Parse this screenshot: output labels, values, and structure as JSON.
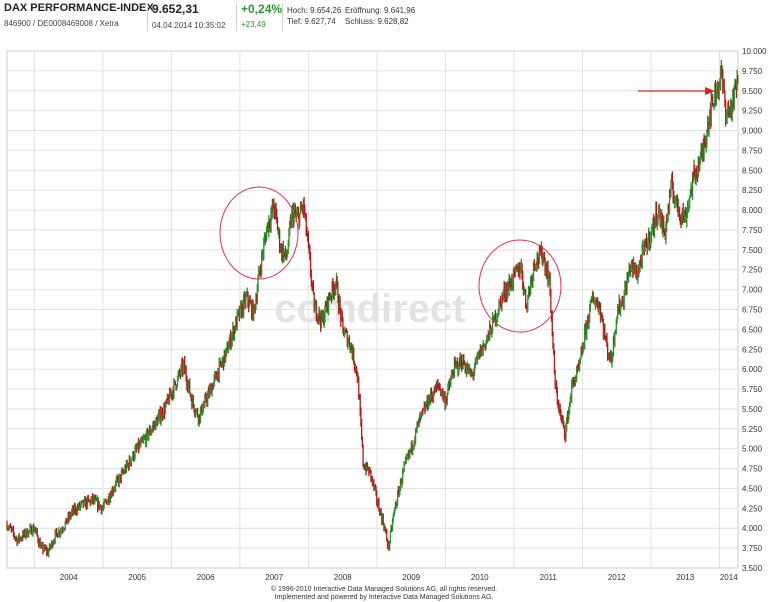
{
  "header": {
    "name": "DAX PERFORMANCE-INDEX",
    "id_line": "846900 / DE0008469008 / Xetra",
    "price": "9.652,31",
    "datetime": "04.04.2014 10:35:02",
    "change_pct": "+0,24%",
    "change_abs": "+23,49",
    "high_label": "Hoch:",
    "high_value": "9.654,26",
    "open_label": "Eröffnung:",
    "open_value": "9.641,96",
    "low_label": "Tief:",
    "low_value": "9.627,74",
    "close_label": "Schluss:",
    "close_value": "9.628,82"
  },
  "watermark": "comdirect",
  "footer": {
    "line1": "© 1996-2010 Interactive Data Managed Solutions AG, all rights reserved.",
    "line2": "Implemented and powered by Interactive Data Managed Solutions AG."
  },
  "colors": {
    "up": "#2e8b2e",
    "down": "#b01818",
    "grid": "#e2e2e2",
    "annotation": "#e0334a",
    "arrow": "#e02020"
  },
  "chart_data": {
    "type": "line",
    "title": "",
    "xlabel": "",
    "ylabel": "",
    "x_tick_labels": [
      "2004",
      "2005",
      "2006",
      "2007",
      "2008",
      "2009",
      "2010",
      "2011",
      "2012",
      "2013",
      "2014"
    ],
    "y_tick_labels": [
      "3.500",
      "3.750",
      "4.000",
      "4.250",
      "4.500",
      "4.750",
      "5.000",
      "5.250",
      "5.500",
      "5.750",
      "6.000",
      "6.250",
      "6.500",
      "6.750",
      "7.000",
      "7.250",
      "7.500",
      "7.750",
      "8.000",
      "8.250",
      "8.500",
      "8.750",
      "9.000",
      "9.250",
      "9.500",
      "9.750",
      "10.000"
    ],
    "ylim": [
      3500,
      10000
    ],
    "xlim": [
      2003.6,
      2014.27
    ],
    "y_axis_position": "right",
    "grid": true,
    "legend": "none",
    "series": [
      {
        "values": [
          [
            2003.6,
            4050
          ],
          [
            2003.75,
            3850
          ],
          [
            2003.9,
            3950
          ],
          [
            2004.0,
            4000
          ],
          [
            2004.1,
            3750
          ],
          [
            2004.2,
            3700
          ],
          [
            2004.3,
            3900
          ],
          [
            2004.45,
            4050
          ],
          [
            2004.55,
            4200
          ],
          [
            2004.7,
            4300
          ],
          [
            2004.85,
            4350
          ],
          [
            2005.0,
            4250
          ],
          [
            2005.15,
            4500
          ],
          [
            2005.3,
            4700
          ],
          [
            2005.4,
            4850
          ],
          [
            2005.5,
            5000
          ],
          [
            2005.6,
            5100
          ],
          [
            2005.75,
            5300
          ],
          [
            2005.9,
            5500
          ],
          [
            2006.05,
            5800
          ],
          [
            2006.18,
            6050
          ],
          [
            2006.3,
            5600
          ],
          [
            2006.4,
            5400
          ],
          [
            2006.5,
            5600
          ],
          [
            2006.65,
            5900
          ],
          [
            2006.8,
            6200
          ],
          [
            2006.95,
            6600
          ],
          [
            2007.1,
            6900
          ],
          [
            2007.2,
            6700
          ],
          [
            2007.3,
            7300
          ],
          [
            2007.4,
            7800
          ],
          [
            2007.5,
            8050
          ],
          [
            2007.6,
            7500
          ],
          [
            2007.68,
            7400
          ],
          [
            2007.76,
            7950
          ],
          [
            2007.85,
            7900
          ],
          [
            2007.93,
            8050
          ],
          [
            2008.0,
            7500
          ],
          [
            2008.08,
            6800
          ],
          [
            2008.2,
            6600
          ],
          [
            2008.3,
            6900
          ],
          [
            2008.4,
            7100
          ],
          [
            2008.5,
            6500
          ],
          [
            2008.62,
            6300
          ],
          [
            2008.72,
            5900
          ],
          [
            2008.8,
            4800
          ],
          [
            2008.9,
            4700
          ],
          [
            2009.0,
            4350
          ],
          [
            2009.1,
            4050
          ],
          [
            2009.17,
            3750
          ],
          [
            2009.25,
            4200
          ],
          [
            2009.38,
            4700
          ],
          [
            2009.5,
            5000
          ],
          [
            2009.6,
            5300
          ],
          [
            2009.75,
            5600
          ],
          [
            2009.9,
            5800
          ],
          [
            2010.0,
            5600
          ],
          [
            2010.12,
            6000
          ],
          [
            2010.25,
            6100
          ],
          [
            2010.38,
            5900
          ],
          [
            2010.5,
            6200
          ],
          [
            2010.62,
            6400
          ],
          [
            2010.75,
            6700
          ],
          [
            2010.85,
            6950
          ],
          [
            2011.0,
            7150
          ],
          [
            2011.1,
            7300
          ],
          [
            2011.18,
            6800
          ],
          [
            2011.3,
            7350
          ],
          [
            2011.42,
            7450
          ],
          [
            2011.52,
            7100
          ],
          [
            2011.6,
            5800
          ],
          [
            2011.68,
            5400
          ],
          [
            2011.75,
            5200
          ],
          [
            2011.85,
            5800
          ],
          [
            2011.95,
            6000
          ],
          [
            2012.05,
            6500
          ],
          [
            2012.15,
            6900
          ],
          [
            2012.25,
            6800
          ],
          [
            2012.35,
            6300
          ],
          [
            2012.42,
            6100
          ],
          [
            2012.5,
            6700
          ],
          [
            2012.6,
            6900
          ],
          [
            2012.7,
            7300
          ],
          [
            2012.8,
            7200
          ],
          [
            2012.9,
            7500
          ],
          [
            2013.0,
            7700
          ],
          [
            2013.1,
            8000
          ],
          [
            2013.2,
            7700
          ],
          [
            2013.3,
            8300
          ],
          [
            2013.4,
            8000
          ],
          [
            2013.5,
            7900
          ],
          [
            2013.62,
            8400
          ],
          [
            2013.75,
            8700
          ],
          [
            2013.85,
            9200
          ],
          [
            2013.95,
            9500
          ],
          [
            2014.03,
            9700
          ],
          [
            2014.1,
            9200
          ],
          [
            2014.18,
            9300
          ],
          [
            2014.27,
            9650
          ]
        ]
      }
    ]
  }
}
